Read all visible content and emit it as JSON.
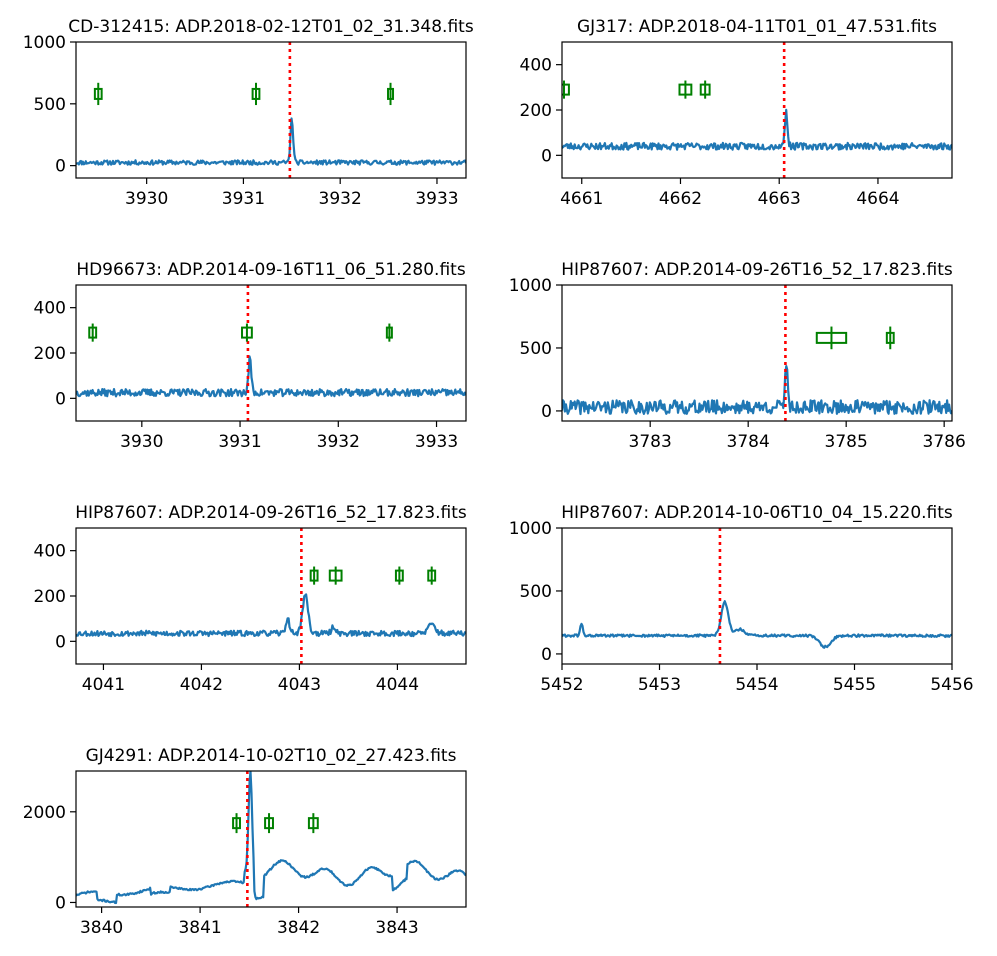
{
  "chart_data": [
    {
      "type": "line",
      "title": "CD-312415: ADP.2018-02-12T01_02_31.348.fits",
      "xlim": [
        3929.27,
        3933.3
      ],
      "ylim": [
        -100,
        1000
      ],
      "xticks": [
        3930,
        3931,
        3932,
        3933
      ],
      "yticks": [
        0,
        500,
        1000
      ],
      "marker_x": 3931.48,
      "spectrum": {
        "x": [
          3929.27,
          3933.3
        ],
        "base": 25,
        "noise": 18,
        "seed": 11,
        "features": [
          {
            "x": 3931.5,
            "w": 0.02,
            "h": 350
          }
        ]
      },
      "points": [
        {
          "x": 3929.5,
          "y": 580,
          "xerr": 0.035,
          "yerr": 90
        },
        {
          "x": 3931.13,
          "y": 580,
          "xerr": 0.035,
          "yerr": 90
        },
        {
          "x": 3932.52,
          "y": 580,
          "xerr": 0.02,
          "yerr": 90
        }
      ]
    },
    {
      "type": "line",
      "title": "GJ317: ADP.2018-04-11T01_01_47.531.fits",
      "xlim": [
        4660.8,
        4664.75
      ],
      "ylim": [
        -100,
        500
      ],
      "xticks": [
        4661,
        4662,
        4663,
        4664
      ],
      "yticks": [
        0,
        200,
        400
      ],
      "marker_x": 4663.05,
      "spectrum": {
        "x": [
          4660.8,
          4664.75
        ],
        "base": 40,
        "noise": 15,
        "seed": 23,
        "features": [
          {
            "x": 4663.07,
            "w": 0.02,
            "h": 150
          }
        ]
      },
      "points": [
        {
          "x": 4660.82,
          "y": 290,
          "xerr": 0.05,
          "yerr": 40
        },
        {
          "x": 4662.05,
          "y": 290,
          "xerr": 0.06,
          "yerr": 40
        },
        {
          "x": 4662.25,
          "y": 290,
          "xerr": 0.045,
          "yerr": 40
        }
      ]
    },
    {
      "type": "line",
      "title": "HD96673: ADP.2014-09-16T11_06_51.280.fits",
      "xlim": [
        3929.33,
        3933.3
      ],
      "ylim": [
        -100,
        500
      ],
      "xticks": [
        3930,
        3931,
        3932,
        3933
      ],
      "yticks": [
        0,
        200,
        400
      ],
      "marker_x": 3931.08,
      "spectrum": {
        "x": [
          3929.33,
          3933.3
        ],
        "base": 25,
        "noise": 16,
        "seed": 37,
        "features": [
          {
            "x": 3931.1,
            "w": 0.02,
            "h": 150
          }
        ]
      },
      "points": [
        {
          "x": 3929.5,
          "y": 290,
          "xerr": 0.035,
          "yerr": 40
        },
        {
          "x": 3931.07,
          "y": 290,
          "xerr": 0.05,
          "yerr": 40
        },
        {
          "x": 3932.52,
          "y": 290,
          "xerr": 0.02,
          "yerr": 40
        }
      ]
    },
    {
      "type": "line",
      "title": "HIP87607: ADP.2014-09-26T16_52_17.823.fits",
      "xlim": [
        3782.1,
        3786.08
      ],
      "ylim": [
        -80,
        1000
      ],
      "xticks": [
        3783,
        3784,
        3785,
        3786
      ],
      "yticks": [
        0,
        500,
        1000
      ],
      "marker_x": 3784.38,
      "spectrum": {
        "x": [
          3782.1,
          3786.08
        ],
        "base": 30,
        "noise": 55,
        "seed": 41,
        "features": [
          {
            "x": 3784.39,
            "w": 0.02,
            "h": 360
          }
        ]
      },
      "points": [
        {
          "x": 3784.85,
          "y": 580,
          "xerr": 0.15,
          "yerr": 90
        },
        {
          "x": 3785.45,
          "y": 580,
          "xerr": 0.035,
          "yerr": 90
        }
      ]
    },
    {
      "type": "line",
      "title": "HIP87607: ADP.2014-09-26T16_52_17.823.fits",
      "xlim": [
        4040.72,
        4044.7
      ],
      "ylim": [
        -100,
        500
      ],
      "xticks": [
        4041,
        4042,
        4043,
        4044
      ],
      "yticks": [
        0,
        200,
        400
      ],
      "marker_x": 4043.02,
      "spectrum": {
        "x": [
          4040.72,
          4044.7
        ],
        "base": 35,
        "noise": 12,
        "seed": 53,
        "features": [
          {
            "x": 4042.88,
            "w": 0.03,
            "h": 60
          },
          {
            "x": 4043.06,
            "w": 0.04,
            "h": 170
          },
          {
            "x": 4043.35,
            "w": 0.03,
            "h": 30
          },
          {
            "x": 4044.35,
            "w": 0.05,
            "h": 40
          }
        ]
      },
      "points": [
        {
          "x": 4043.15,
          "y": 290,
          "xerr": 0.035,
          "yerr": 40
        },
        {
          "x": 4043.37,
          "y": 290,
          "xerr": 0.06,
          "yerr": 40
        },
        {
          "x": 4044.02,
          "y": 290,
          "xerr": 0.035,
          "yerr": 40
        },
        {
          "x": 4044.35,
          "y": 290,
          "xerr": 0.035,
          "yerr": 40
        }
      ]
    },
    {
      "type": "line",
      "title": "HIP87607: ADP.2014-10-06T10_04_15.220.fits",
      "xlim": [
        5452,
        5456
      ],
      "ylim": [
        -80,
        1000
      ],
      "xticks": [
        5452,
        5453,
        5454,
        5455,
        5456
      ],
      "yticks": [
        0,
        500,
        1000
      ],
      "marker_x": 5453.62,
      "spectrum": {
        "x": [
          5452,
          5456
        ],
        "base": 145,
        "noise": 10,
        "seed": 61,
        "features": [
          {
            "x": 5453.67,
            "w": 0.05,
            "h": 270
          },
          {
            "x": 5453.82,
            "w": 0.07,
            "h": 50
          },
          {
            "x": 5452.2,
            "w": 0.02,
            "h": 90
          },
          {
            "x": 5454.7,
            "w": 0.08,
            "h": -90
          }
        ]
      },
      "points": []
    },
    {
      "type": "line",
      "title": "GJ4291: ADP.2014-10-02T10_02_27.423.fits",
      "xlim": [
        3839.74,
        3843.7
      ],
      "ylim": [
        -100,
        2900
      ],
      "xticks": [
        3840,
        3841,
        3842,
        3843
      ],
      "yticks": [
        0,
        2000
      ],
      "marker_x": 3841.48,
      "spectrum": {
        "x": [
          3839.74,
          3843.7
        ],
        "custom": "gj4291",
        "seed": 71
      },
      "points": [
        {
          "x": 3841.37,
          "y": 1750,
          "xerr": 0.035,
          "yerr": 220
        },
        {
          "x": 3841.7,
          "y": 1750,
          "xerr": 0.04,
          "yerr": 220
        },
        {
          "x": 3842.15,
          "y": 1750,
          "xerr": 0.045,
          "yerr": 220
        }
      ]
    }
  ]
}
